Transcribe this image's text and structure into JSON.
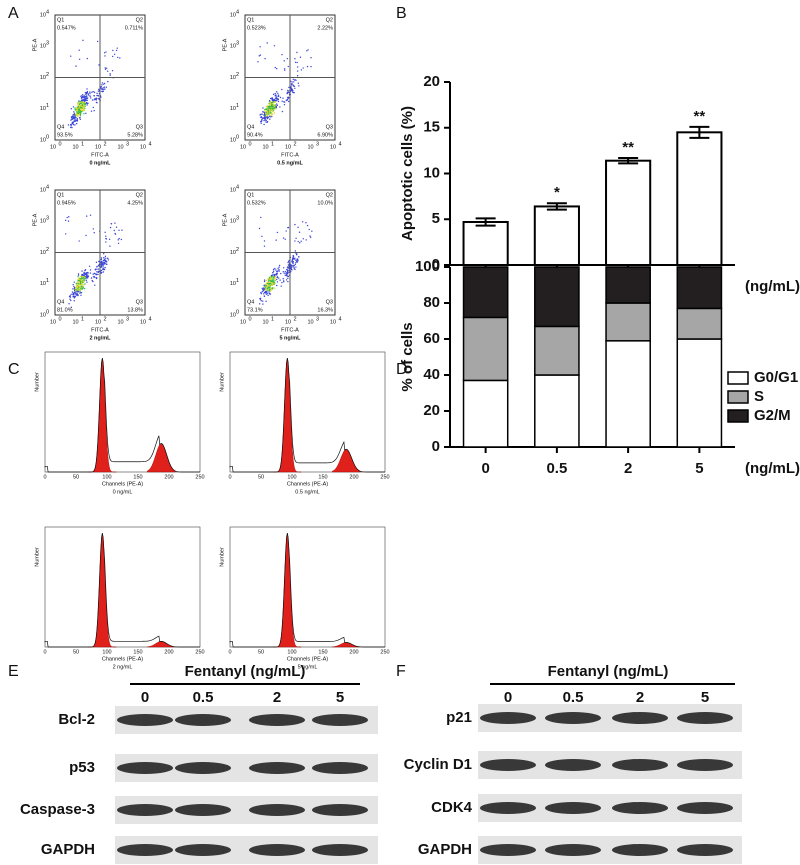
{
  "panel_labels": [
    "A",
    "B",
    "C",
    "D",
    "E",
    "F"
  ],
  "flow_axis": {
    "x_label": "FITC-A",
    "y_label": "PE-A",
    "tick_base": "10",
    "tick_exponents": [
      "0",
      "1",
      "2",
      "3",
      "4"
    ],
    "quadrant_names": [
      "Q1",
      "Q2",
      "Q3",
      "Q4"
    ]
  },
  "flow_plots": [
    {
      "condition": "0 ng/mL",
      "quadrant_values": [
        "0.547%",
        "0.711%",
        "5.28%",
        "93.5%"
      ]
    },
    {
      "condition": "0.5 ng/mL",
      "quadrant_values": [
        "0.523%",
        "2.22%",
        "6.90%",
        "90.4%"
      ]
    },
    {
      "condition": "2 ng/mL",
      "quadrant_values": [
        "0.945%",
        "4.25%",
        "13.8%",
        "81.0%"
      ]
    },
    {
      "condition": "5 ng/mL",
      "quadrant_values": [
        "0.532%",
        "10.0%",
        "16.3%",
        "73.1%"
      ]
    }
  ],
  "cell_cycle": {
    "x_label": "Channels (PE-A)",
    "y_label": "Number",
    "x_ticks": [
      "0",
      "50",
      "100",
      "150",
      "200",
      "250"
    ],
    "conditions": [
      "0 ng/mL",
      "0.5 ng/mL",
      "2 ng/mL",
      "5 ng/mL"
    ]
  },
  "chart_data": [
    {
      "type": "bar",
      "ylabel": "Apoptotic cells (%)",
      "categories": [
        "0",
        "0.5",
        "2",
        "5"
      ],
      "x_unit": "(ng/mL)",
      "values": [
        4.7,
        6.4,
        11.4,
        14.5
      ],
      "errors": [
        0.4,
        0.35,
        0.3,
        0.6
      ],
      "significance": [
        null,
        "*",
        "**",
        "**"
      ],
      "color": "#ffffff",
      "ylim": [
        0,
        20
      ],
      "yticks": [
        0,
        5,
        10,
        15,
        20
      ]
    },
    {
      "type": "stacked_bar",
      "ylabel": "% of cells",
      "categories": [
        "0",
        "0.5",
        "2",
        "5"
      ],
      "x_unit": "(ng/mL)",
      "series": [
        {
          "name": "G0/G1",
          "color": "#ffffff",
          "values": [
            37,
            40,
            59,
            60
          ]
        },
        {
          "name": "S",
          "color": "#a6a6a6",
          "values": [
            35,
            27,
            21,
            17
          ]
        },
        {
          "name": "G2/M",
          "color": "#231f20",
          "values": [
            28,
            33,
            20,
            23
          ]
        }
      ],
      "ylim": [
        0,
        100
      ],
      "yticks": [
        0,
        20,
        40,
        60,
        80,
        100
      ]
    }
  ],
  "blots": [
    {
      "title": "Fentanyl (ng/mL)",
      "doses": [
        "0",
        "0.5",
        "2",
        "5"
      ],
      "proteins": [
        "Bcl-2",
        "p53",
        "Caspase-3",
        "GAPDH"
      ]
    },
    {
      "title": "Fentanyl (ng/mL)",
      "doses": [
        "0",
        "0.5",
        "2",
        "5"
      ],
      "proteins": [
        "p21",
        "Cyclin D1",
        "CDK4",
        "GAPDH"
      ]
    }
  ]
}
